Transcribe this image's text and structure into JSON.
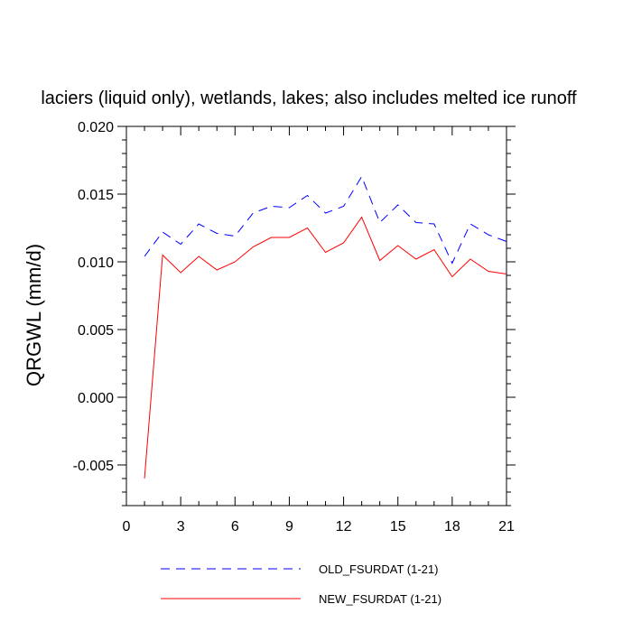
{
  "chart_data": {
    "type": "line",
    "title": "laciers (liquid only), wetlands, lakes; also includes melted ice runoff",
    "xlabel": "",
    "ylabel": "QRGWL  (mm/d)",
    "xlim": [
      0,
      21
    ],
    "ylim": [
      -0.008,
      0.02
    ],
    "x_ticks": [
      "0",
      "3",
      "6",
      "9",
      "12",
      "15",
      "18",
      "21"
    ],
    "y_ticks": [
      "-0.005",
      "0.000",
      "0.005",
      "0.010",
      "0.015",
      "0.020"
    ],
    "legend_position": "bottom",
    "x": [
      1,
      2,
      3,
      4,
      5,
      6,
      7,
      8,
      9,
      10,
      11,
      12,
      13,
      14,
      15,
      16,
      17,
      18,
      19,
      20,
      21
    ],
    "series": [
      {
        "name": "OLD_FSURDAT (1-21)",
        "color": "#0000ff",
        "style": "dashed",
        "values": [
          0.0104,
          0.0122,
          0.0113,
          0.0128,
          0.0121,
          0.0119,
          0.0136,
          0.0141,
          0.014,
          0.0149,
          0.0136,
          0.0141,
          0.0163,
          0.0129,
          0.0142,
          0.0129,
          0.0128,
          0.0099,
          0.0128,
          0.012,
          0.0115
        ]
      },
      {
        "name": "NEW_FSURDAT (1-21)",
        "color": "#ff0000",
        "style": "solid",
        "values": [
          -0.006,
          0.0105,
          0.0092,
          0.0104,
          0.0094,
          0.01,
          0.0111,
          0.0118,
          0.0118,
          0.0125,
          0.0107,
          0.0114,
          0.0133,
          0.0101,
          0.0112,
          0.0102,
          0.0109,
          0.0089,
          0.0102,
          0.0093,
          0.0091
        ]
      }
    ]
  }
}
